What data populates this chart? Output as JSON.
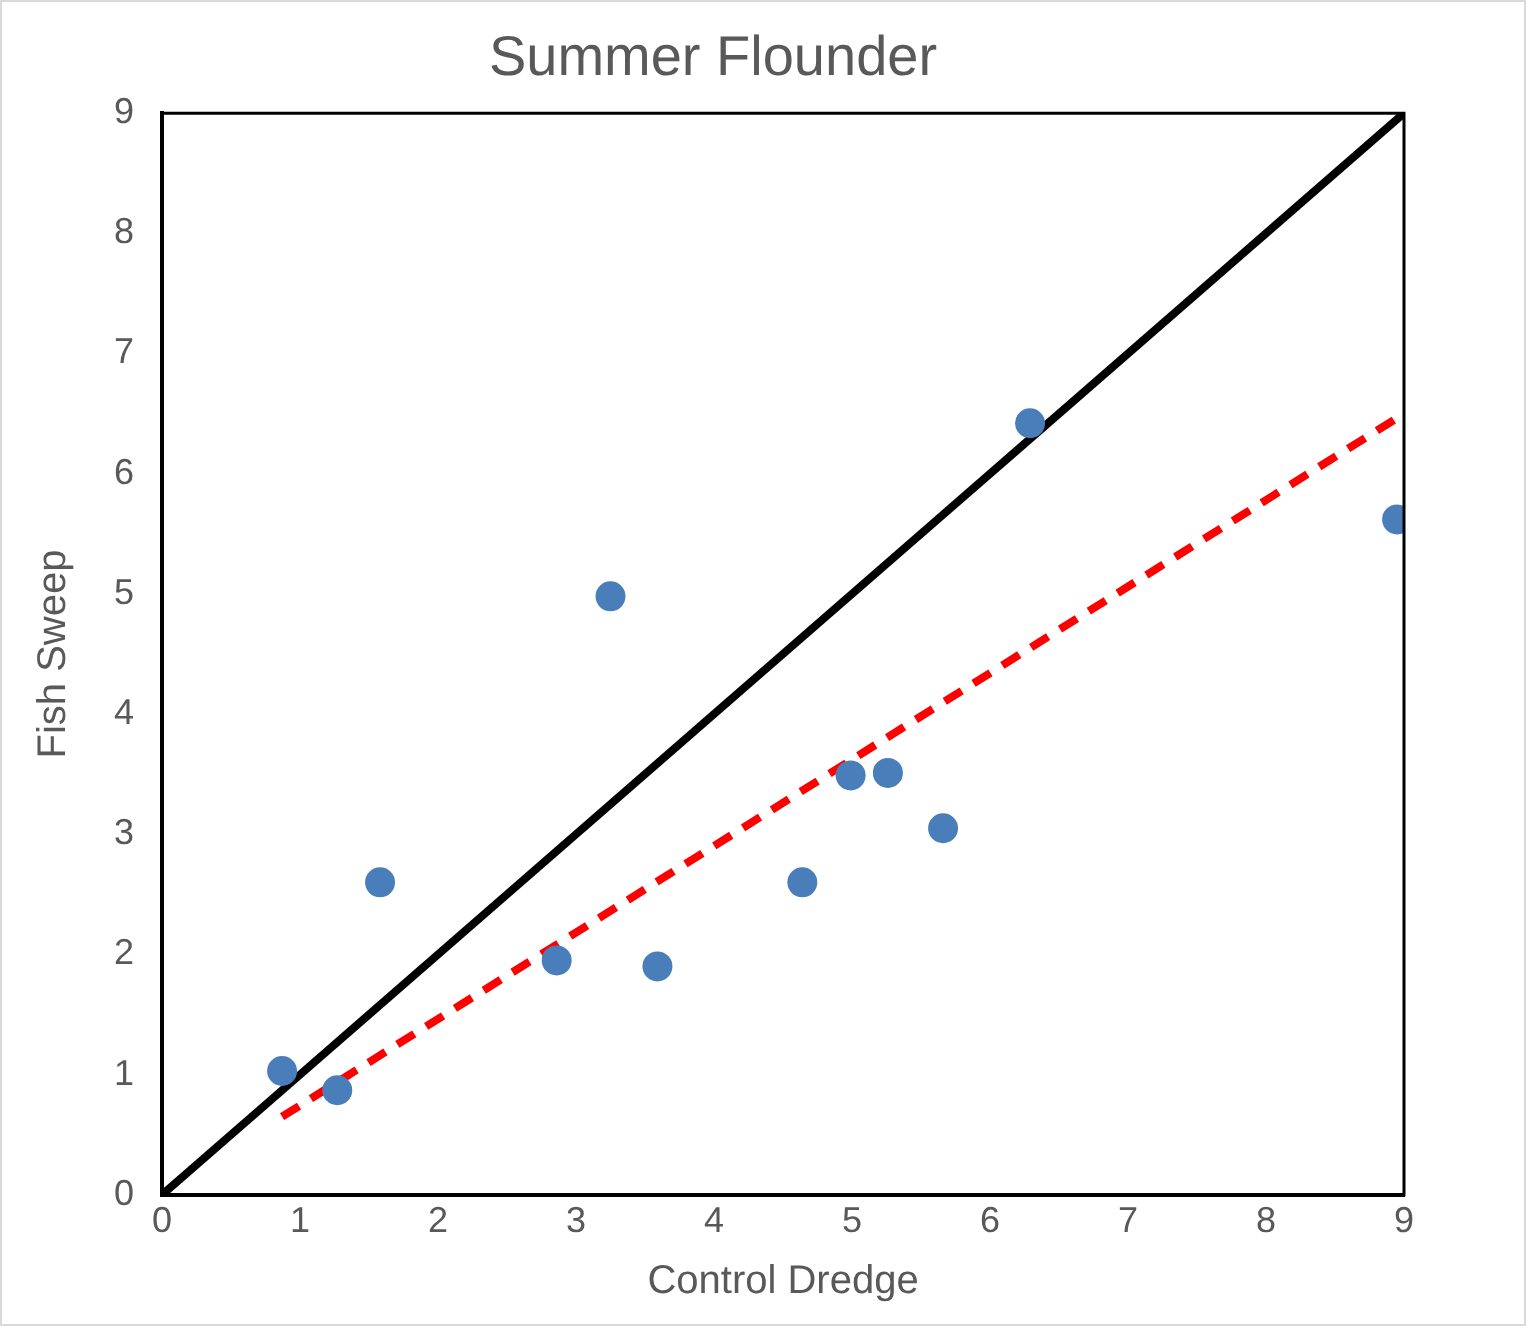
{
  "chart_data": {
    "type": "scatter",
    "title": "Summer Flounder",
    "xlabel": "Control Dredge",
    "ylabel": "Fish Sweep",
    "xlim": [
      0,
      9
    ],
    "xticks": [
      0,
      1,
      2,
      3,
      4,
      5,
      6,
      7,
      8,
      9
    ],
    "ylim": [
      0,
      9
    ],
    "yticks": [
      0,
      1,
      2,
      3,
      4,
      5,
      6,
      7,
      8,
      9
    ],
    "grid": false,
    "legend": false,
    "series": [
      {
        "type": "scatter",
        "marker": "circle",
        "color": "#4a7ebb",
        "x": [
          0.87,
          1.27,
          1.58,
          2.86,
          3.25,
          3.59,
          4.64,
          4.99,
          5.26,
          5.66,
          6.29,
          8.95
        ],
        "values": [
          1.03,
          0.87,
          2.6,
          1.95,
          4.98,
          1.9,
          2.6,
          3.49,
          3.51,
          3.05,
          6.42,
          5.62
        ]
      },
      {
        "type": "line",
        "marker": "none",
        "color": "#000000",
        "line_style": "solid",
        "x": [
          0,
          9
        ],
        "values": [
          0,
          9
        ]
      },
      {
        "type": "line",
        "marker": "none",
        "color": "#ff0000",
        "line_style": "dashed",
        "x": [
          0.87,
          9
        ],
        "values": [
          0.65,
          6.5
        ]
      }
    ]
  }
}
